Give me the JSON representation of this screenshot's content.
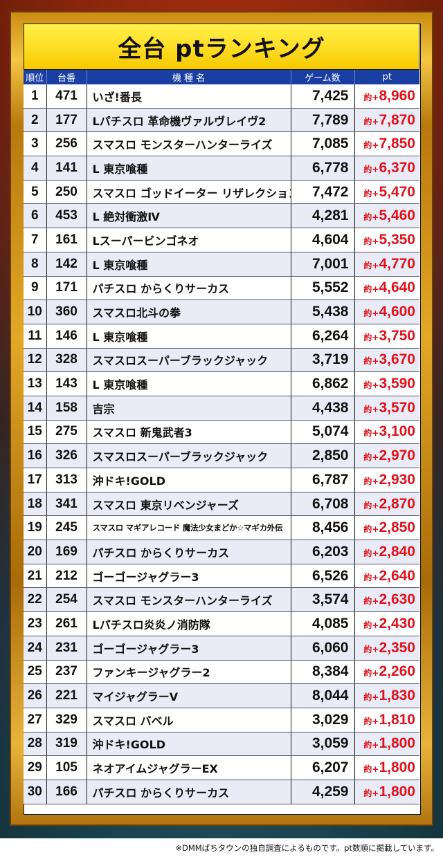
{
  "title": "全台 ptランキング",
  "headers": {
    "rank": "順位",
    "machine_no": "台番",
    "machine_name": "機 種 名",
    "games": "ゲーム数",
    "pt": "pt"
  },
  "approx_prefix": "約+",
  "rows": [
    {
      "rank": "1",
      "no": "471",
      "name": "いざ!番長",
      "games": "7,425",
      "pt": "8,960"
    },
    {
      "rank": "2",
      "no": "177",
      "name": "Lパチスロ 革命機ヴァルヴレイヴ2",
      "games": "7,789",
      "pt": "7,870"
    },
    {
      "rank": "3",
      "no": "256",
      "name": "スマスロ モンスターハンターライズ",
      "games": "7,085",
      "pt": "7,850"
    },
    {
      "rank": "4",
      "no": "141",
      "name": "L 東京喰種",
      "games": "6,778",
      "pt": "6,370"
    },
    {
      "rank": "5",
      "no": "250",
      "name": "スマスロ ゴッドイーター リザレクション",
      "games": "7,472",
      "pt": "5,470"
    },
    {
      "rank": "6",
      "no": "453",
      "name": "L 絶対衝激Ⅳ",
      "games": "4,281",
      "pt": "5,460"
    },
    {
      "rank": "7",
      "no": "161",
      "name": "Lスーパービンゴネオ",
      "games": "4,604",
      "pt": "5,350"
    },
    {
      "rank": "8",
      "no": "142",
      "name": "L 東京喰種",
      "games": "7,001",
      "pt": "4,770"
    },
    {
      "rank": "9",
      "no": "171",
      "name": "パチスロ からくりサーカス",
      "games": "5,552",
      "pt": "4,640"
    },
    {
      "rank": "10",
      "no": "360",
      "name": "スマスロ北斗の拳",
      "games": "5,438",
      "pt": "4,600"
    },
    {
      "rank": "11",
      "no": "146",
      "name": "L 東京喰種",
      "games": "6,264",
      "pt": "3,750"
    },
    {
      "rank": "12",
      "no": "328",
      "name": "スマスロスーパーブラックジャック",
      "games": "3,719",
      "pt": "3,670"
    },
    {
      "rank": "13",
      "no": "143",
      "name": "L 東京喰種",
      "games": "6,862",
      "pt": "3,590"
    },
    {
      "rank": "14",
      "no": "158",
      "name": "吉宗",
      "games": "4,438",
      "pt": "3,570"
    },
    {
      "rank": "15",
      "no": "275",
      "name": "スマスロ 新鬼武者3",
      "games": "5,074",
      "pt": "3,100"
    },
    {
      "rank": "16",
      "no": "326",
      "name": "スマスロスーパーブラックジャック",
      "games": "2,850",
      "pt": "2,970"
    },
    {
      "rank": "17",
      "no": "313",
      "name": "沖ドキ!GOLD",
      "games": "6,787",
      "pt": "2,930"
    },
    {
      "rank": "18",
      "no": "341",
      "name": "スマスロ 東京リベンジャーズ",
      "games": "6,708",
      "pt": "2,870"
    },
    {
      "rank": "19",
      "no": "245",
      "name": "スマスロ マギアレコード 魔法少女まどか☆マギカ外伝",
      "games": "8,456",
      "pt": "2,850",
      "small": true
    },
    {
      "rank": "20",
      "no": "169",
      "name": "パチスロ からくりサーカス",
      "games": "6,203",
      "pt": "2,840"
    },
    {
      "rank": "21",
      "no": "212",
      "name": "ゴーゴージャグラー3",
      "games": "6,526",
      "pt": "2,640"
    },
    {
      "rank": "22",
      "no": "254",
      "name": "スマスロ モンスターハンターライズ",
      "games": "3,574",
      "pt": "2,630"
    },
    {
      "rank": "23",
      "no": "261",
      "name": "Lパチスロ炎炎ノ消防隊",
      "games": "4,085",
      "pt": "2,430"
    },
    {
      "rank": "24",
      "no": "231",
      "name": "ゴーゴージャグラー3",
      "games": "6,060",
      "pt": "2,350"
    },
    {
      "rank": "25",
      "no": "237",
      "name": "ファンキージャグラー2",
      "games": "8,384",
      "pt": "2,260"
    },
    {
      "rank": "26",
      "no": "221",
      "name": "マイジャグラーV",
      "games": "8,044",
      "pt": "1,830"
    },
    {
      "rank": "27",
      "no": "329",
      "name": "スマスロ バベル",
      "games": "3,029",
      "pt": "1,810"
    },
    {
      "rank": "28",
      "no": "319",
      "name": "沖ドキ!GOLD",
      "games": "3,059",
      "pt": "1,800"
    },
    {
      "rank": "29",
      "no": "105",
      "name": "ネオアイムジャグラーEX",
      "games": "6,207",
      "pt": "1,800"
    },
    {
      "rank": "30",
      "no": "166",
      "name": "パチスロ からくりサーカス",
      "games": "4,259",
      "pt": "1,800"
    }
  ],
  "footer_note": "※DMMぱちタウンの独自調査によるものです。pt数順に掲載しています。"
}
